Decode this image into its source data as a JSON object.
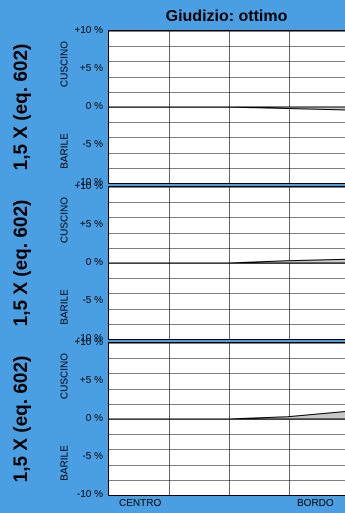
{
  "title": "Giudizio: ottimo",
  "panels": [
    {
      "label": "1,5 X (eq. 602)",
      "upper": "CUSCINO",
      "lower": "BARILE",
      "ticks": [
        "+10 %",
        "+5 %",
        "0 %",
        "-5 %",
        "-10 %"
      ]
    },
    {
      "label": "1,5 X (eq. 602)",
      "upper": "CUSCINO",
      "lower": "BARILE",
      "ticks": [
        "+10 %",
        "+5 %",
        "0 %",
        "-5 %",
        "-10 %"
      ]
    },
    {
      "label": "1,5 X (eq. 602)",
      "upper": "CUSCINO",
      "lower": "BARILE",
      "ticks": [
        "+10 %",
        "+5 %",
        "0 %",
        "-5 %",
        "-10 %"
      ]
    }
  ],
  "xaxis": {
    "left": "CENTRO",
    "right": "BORDO"
  },
  "colors": {
    "background": "#4a9ee2",
    "plot": "#ffffff",
    "grid": "#000000",
    "fill": "#c8c8c8"
  },
  "chart_data": [
    {
      "type": "area",
      "title": "Giudizio: ottimo",
      "ylabel": "1,5 X (eq. 602)",
      "ylim": [
        -10,
        10
      ],
      "x": [
        0,
        0.25,
        0.5,
        0.75,
        1.0
      ],
      "series": [
        {
          "values": [
            0,
            0,
            0,
            -0.2,
            -0.4
          ]
        }
      ]
    },
    {
      "type": "area",
      "ylabel": "1,5 X (eq. 602)",
      "ylim": [
        -10,
        10
      ],
      "x": [
        0,
        0.25,
        0.5,
        0.75,
        1.0
      ],
      "series": [
        {
          "values": [
            0,
            0,
            0,
            0.3,
            0.5
          ]
        }
      ]
    },
    {
      "type": "area",
      "ylabel": "1,5 X (eq. 602)",
      "ylim": [
        -10,
        10
      ],
      "x": [
        0,
        0.25,
        0.5,
        0.75,
        1.0
      ],
      "series": [
        {
          "values": [
            0,
            0,
            0,
            0.3,
            1.0
          ]
        }
      ]
    }
  ]
}
